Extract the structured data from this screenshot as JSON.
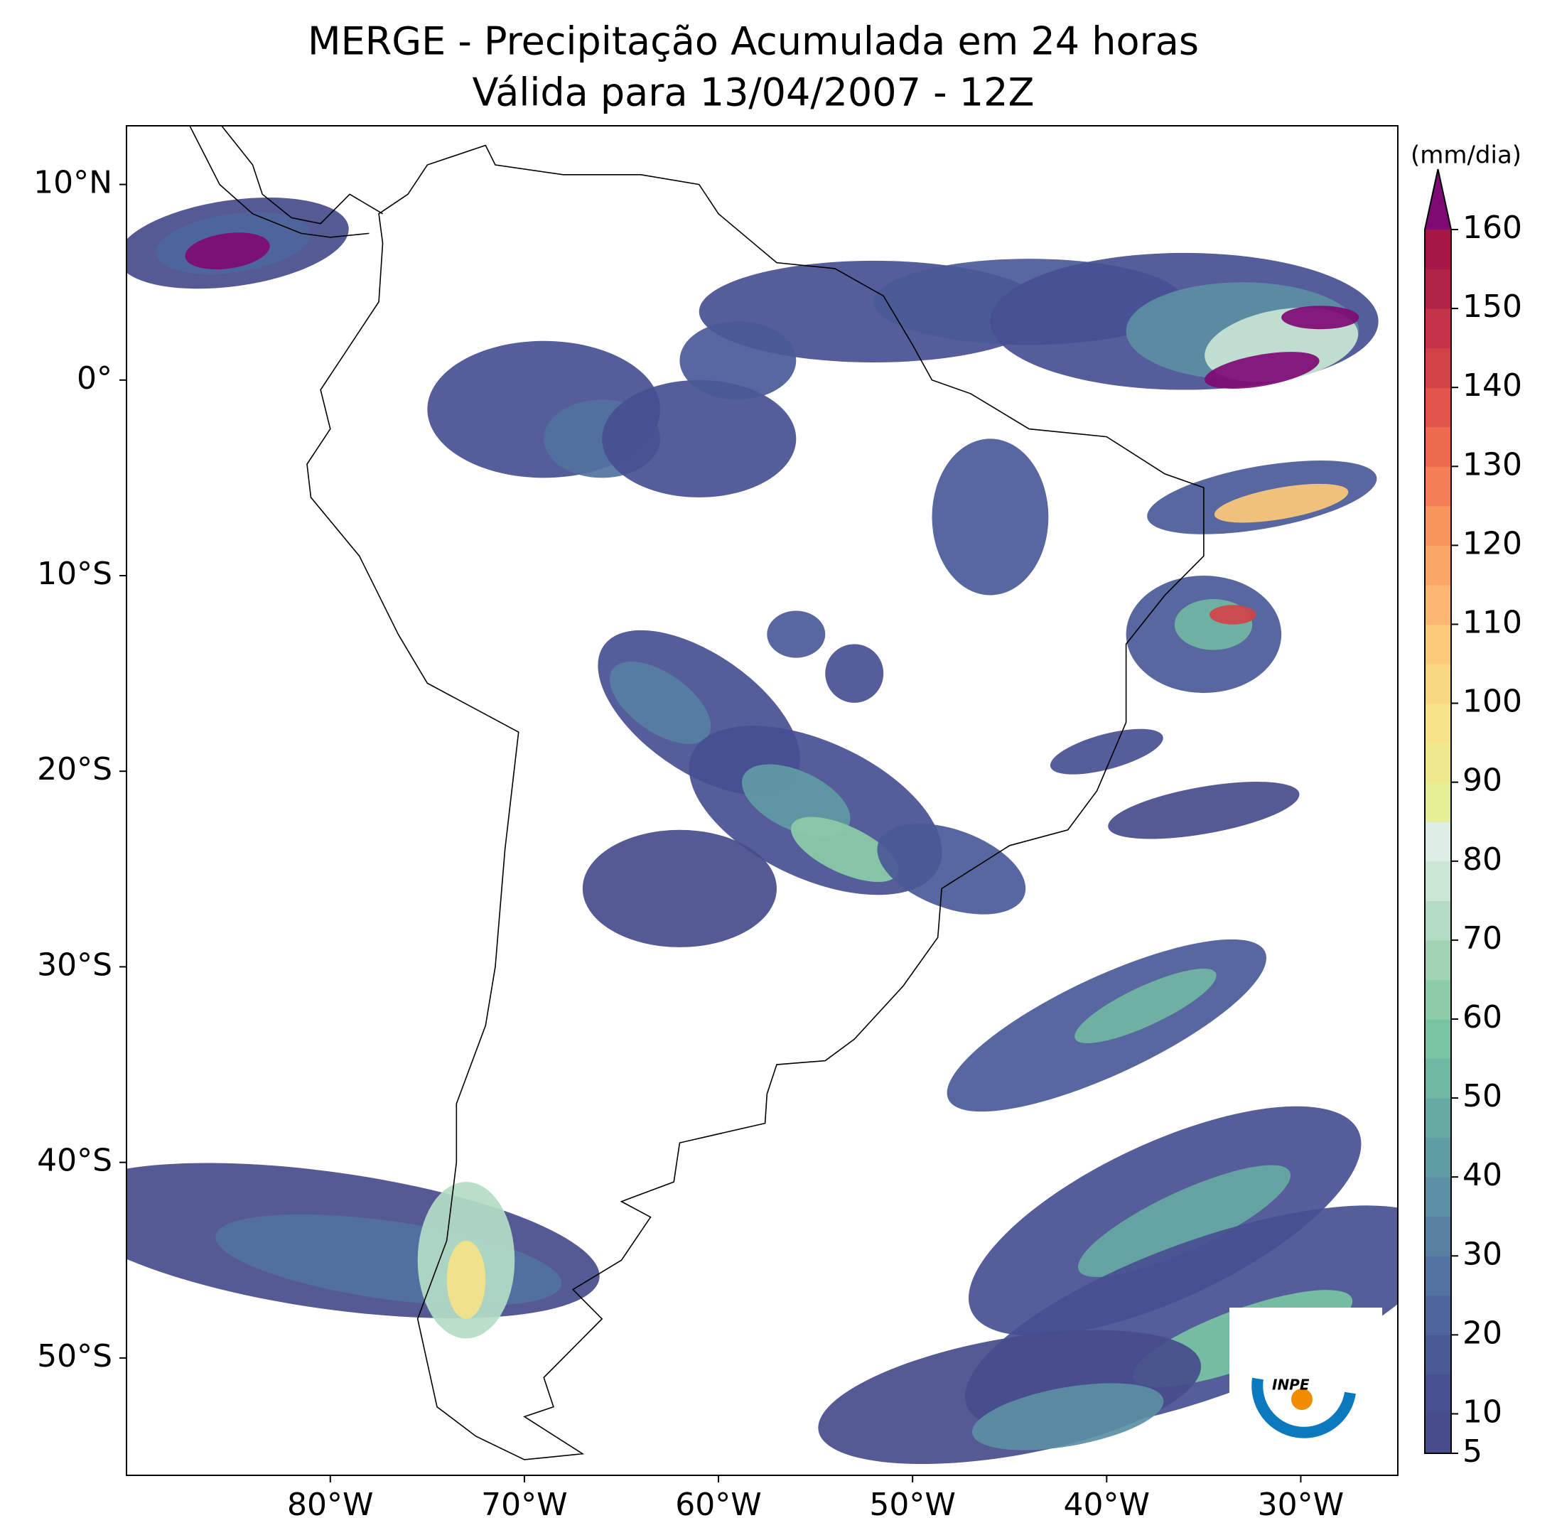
{
  "chart_data": {
    "type": "map",
    "title": "MERGE - Precipitação Acumulada em 24 horas",
    "subtitle": "Válida para 13/04/2007 - 12Z",
    "xlim": [
      -90.5,
      -25
    ],
    "ylim": [
      -56,
      13
    ],
    "xticks": [
      {
        "value": -80,
        "label": "80°W"
      },
      {
        "value": -70,
        "label": "70°W"
      },
      {
        "value": -60,
        "label": "60°W"
      },
      {
        "value": -50,
        "label": "50°W"
      },
      {
        "value": -40,
        "label": "40°W"
      },
      {
        "value": -30,
        "label": "30°W"
      }
    ],
    "yticks": [
      {
        "value": 10,
        "label": "10°N"
      },
      {
        "value": 0,
        "label": "0°"
      },
      {
        "value": -10,
        "label": "10°S"
      },
      {
        "value": -20,
        "label": "20°S"
      },
      {
        "value": -30,
        "label": "30°S"
      },
      {
        "value": -40,
        "label": "40°S"
      },
      {
        "value": -50,
        "label": "50°S"
      }
    ],
    "colorbar": {
      "label": "(mm/dia)",
      "lim": [
        5,
        160
      ],
      "ticks": [
        5,
        10,
        20,
        30,
        40,
        50,
        60,
        70,
        80,
        90,
        100,
        110,
        120,
        130,
        140,
        150,
        160
      ],
      "colors": [
        "#474c8c",
        "#474f91",
        "#4a5a97",
        "#4e669c",
        "#52729f",
        "#5780a2",
        "#5c8ea4",
        "#609ca4",
        "#67a9a3",
        "#70b7a3",
        "#7ac4a4",
        "#8ccca8",
        "#a0d3b4",
        "#b4dcc4",
        "#c9e5d4",
        "#dcede4",
        "#e6ef94",
        "#eee98c",
        "#f5e289",
        "#f9d682",
        "#fcc97a",
        "#fcb870",
        "#faa765",
        "#f8955c",
        "#f47f54",
        "#ec6a4e",
        "#e0554a",
        "#d14347",
        "#c23347",
        "#b22447",
        "#a41746"
      ],
      "extend_color": "#7f0a74"
    },
    "logo_text": "INPE"
  }
}
